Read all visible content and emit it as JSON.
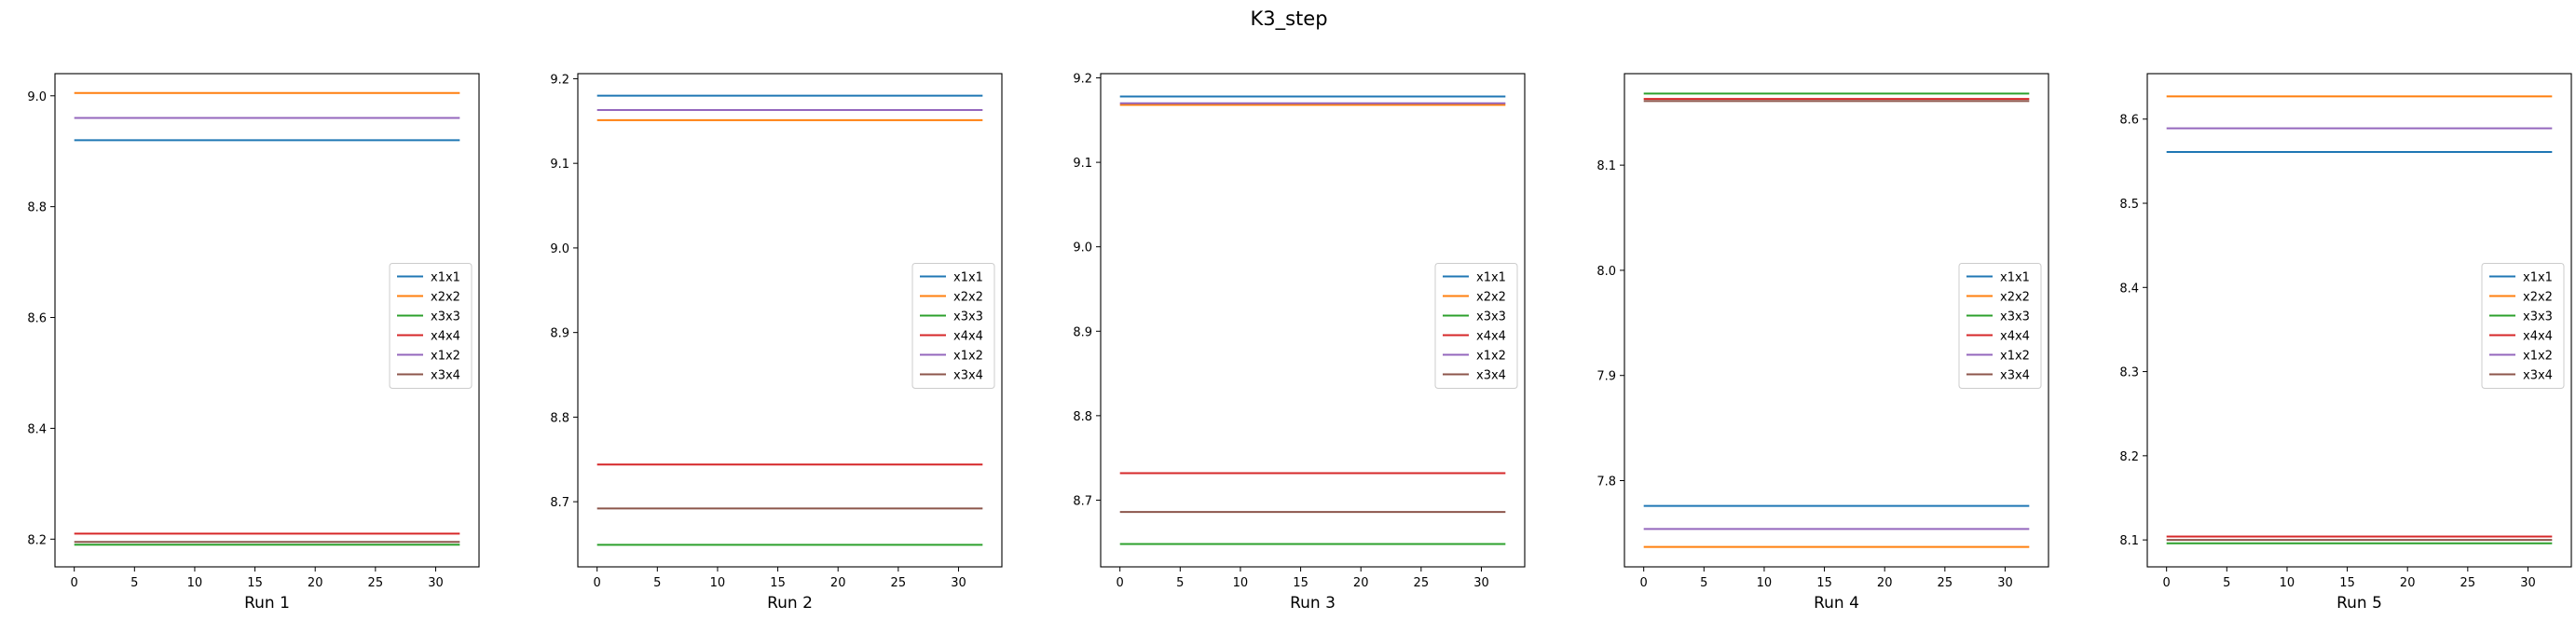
{
  "figure": {
    "title": "K3_step",
    "colors": {
      "x1x1": "#1f77b4",
      "x2x2": "#ff7f0e",
      "x3x3": "#2ca02c",
      "x4x4": "#d62728",
      "x1x2": "#9467bd",
      "x3x4": "#8c564b"
    }
  },
  "chart_data": [
    {
      "type": "line",
      "xlabel": "Run 1",
      "x": [
        0,
        32
      ],
      "xticks": [
        0,
        5,
        10,
        15,
        20,
        25,
        30
      ],
      "xlim": [
        -1.6,
        33.6
      ],
      "ylim": [
        8.15,
        9.04
      ],
      "yticks": [
        8.2,
        8.4,
        8.6,
        8.8,
        9.0
      ],
      "legend": "center-right",
      "series": [
        {
          "name": "x1x1",
          "values": [
            8.92,
            8.92
          ]
        },
        {
          "name": "x2x2",
          "values": [
            9.005,
            9.005
          ]
        },
        {
          "name": "x3x3",
          "values": [
            8.19,
            8.19
          ]
        },
        {
          "name": "x4x4",
          "values": [
            8.21,
            8.21
          ]
        },
        {
          "name": "x1x2",
          "values": [
            8.96,
            8.96
          ]
        },
        {
          "name": "x3x4",
          "values": [
            8.195,
            8.195
          ]
        }
      ]
    },
    {
      "type": "line",
      "xlabel": "Run 2",
      "x": [
        0,
        32
      ],
      "xticks": [
        0,
        5,
        10,
        15,
        20,
        25,
        30
      ],
      "xlim": [
        -1.6,
        33.6
      ],
      "ylim": [
        8.623,
        9.206
      ],
      "yticks": [
        8.7,
        8.8,
        8.9,
        9.0,
        9.1,
        9.2
      ],
      "legend": "center-right",
      "series": [
        {
          "name": "x1x1",
          "values": [
            9.18,
            9.18
          ]
        },
        {
          "name": "x2x2",
          "values": [
            9.151,
            9.151
          ]
        },
        {
          "name": "x3x3",
          "values": [
            8.649,
            8.649
          ]
        },
        {
          "name": "x4x4",
          "values": [
            8.744,
            8.744
          ]
        },
        {
          "name": "x1x2",
          "values": [
            9.163,
            9.163
          ]
        },
        {
          "name": "x3x4",
          "values": [
            8.692,
            8.692
          ]
        }
      ]
    },
    {
      "type": "line",
      "xlabel": "Run 3",
      "x": [
        0,
        32
      ],
      "xticks": [
        0,
        5,
        10,
        15,
        20,
        25,
        30
      ],
      "xlim": [
        -1.6,
        33.6
      ],
      "ylim": [
        8.621,
        9.205
      ],
      "yticks": [
        8.7,
        8.8,
        8.9,
        9.0,
        9.1,
        9.2
      ],
      "legend": "center-right",
      "series": [
        {
          "name": "x1x1",
          "values": [
            9.178,
            9.178
          ]
        },
        {
          "name": "x2x2",
          "values": [
            9.168,
            9.168
          ]
        },
        {
          "name": "x3x3",
          "values": [
            8.648,
            8.648
          ]
        },
        {
          "name": "x4x4",
          "values": [
            8.732,
            8.732
          ]
        },
        {
          "name": "x1x2",
          "values": [
            9.17,
            9.17
          ]
        },
        {
          "name": "x3x4",
          "values": [
            8.686,
            8.686
          ]
        }
      ]
    },
    {
      "type": "line",
      "xlabel": "Run 4",
      "x": [
        0,
        32
      ],
      "xticks": [
        0,
        5,
        10,
        15,
        20,
        25,
        30
      ],
      "xlim": [
        -1.6,
        33.6
      ],
      "ylim": [
        7.718,
        8.187
      ],
      "yticks": [
        7.8,
        7.9,
        8.0,
        8.1
      ],
      "legend": "center-right",
      "series": [
        {
          "name": "x1x1",
          "values": [
            7.776,
            7.776
          ]
        },
        {
          "name": "x2x2",
          "values": [
            7.737,
            7.737
          ]
        },
        {
          "name": "x3x3",
          "values": [
            8.168,
            8.168
          ]
        },
        {
          "name": "x4x4",
          "values": [
            8.163,
            8.163
          ]
        },
        {
          "name": "x1x2",
          "values": [
            7.754,
            7.754
          ]
        },
        {
          "name": "x3x4",
          "values": [
            8.161,
            8.161
          ]
        }
      ]
    },
    {
      "type": "line",
      "xlabel": "Run 5",
      "x": [
        0,
        32
      ],
      "xticks": [
        0,
        5,
        10,
        15,
        20,
        25,
        30
      ],
      "xlim": [
        -1.6,
        33.6
      ],
      "ylim": [
        8.068,
        8.654
      ],
      "yticks": [
        8.1,
        8.2,
        8.3,
        8.4,
        8.5,
        8.6
      ],
      "legend": "center-right",
      "series": [
        {
          "name": "x1x1",
          "values": [
            8.561,
            8.561
          ]
        },
        {
          "name": "x2x2",
          "values": [
            8.627,
            8.627
          ]
        },
        {
          "name": "x3x3",
          "values": [
            8.096,
            8.096
          ]
        },
        {
          "name": "x4x4",
          "values": [
            8.104,
            8.104
          ]
        },
        {
          "name": "x1x2",
          "values": [
            8.589,
            8.589
          ]
        },
        {
          "name": "x3x4",
          "values": [
            8.1,
            8.1
          ]
        }
      ]
    }
  ]
}
